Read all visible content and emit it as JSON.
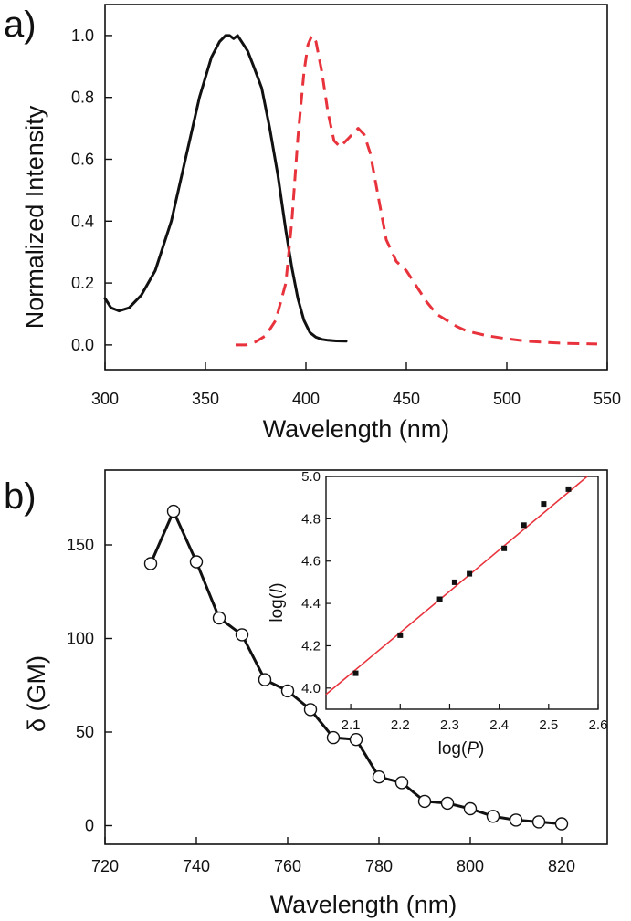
{
  "chart_data": [
    {
      "panel": "a)",
      "type": "line",
      "xlabel": "Wavelength (nm)",
      "ylabel": "Normalized Intensity",
      "xlim": [
        300,
        550
      ],
      "ylim": [
        -0.08,
        1.1
      ],
      "xticks": [
        "300",
        "350",
        "400",
        "450",
        "500",
        "550"
      ],
      "yticks": [
        "0.0",
        "0.2",
        "0.4",
        "0.6",
        "0.8",
        "1.0"
      ],
      "series": [
        {
          "style": "solid",
          "color": "#111111",
          "x": [
            300,
            303,
            307,
            312,
            318,
            325,
            333,
            340,
            347,
            353,
            357,
            360,
            362,
            364,
            366,
            368,
            371,
            374,
            378,
            382,
            386,
            390,
            393,
            396,
            399,
            402,
            405,
            408,
            411,
            415,
            420
          ],
          "y": [
            0.15,
            0.12,
            0.11,
            0.12,
            0.16,
            0.24,
            0.4,
            0.6,
            0.8,
            0.93,
            0.98,
            1.0,
            1.0,
            0.99,
            1.0,
            0.98,
            0.95,
            0.9,
            0.83,
            0.7,
            0.55,
            0.37,
            0.25,
            0.15,
            0.08,
            0.04,
            0.025,
            0.018,
            0.015,
            0.013,
            0.012
          ]
        },
        {
          "style": "dashed",
          "color": "#e8333c",
          "x": [
            365,
            370,
            375,
            380,
            385,
            390,
            393,
            396,
            399,
            401,
            403,
            405,
            408,
            411,
            414,
            417,
            420,
            423,
            426,
            429,
            432,
            436,
            440,
            445,
            450,
            455,
            460,
            465,
            470,
            475,
            480,
            490,
            500,
            510,
            520,
            530,
            545
          ],
          "y": [
            0.0,
            0.0,
            0.01,
            0.03,
            0.08,
            0.2,
            0.4,
            0.67,
            0.88,
            0.97,
            1.0,
            0.98,
            0.88,
            0.75,
            0.66,
            0.64,
            0.66,
            0.68,
            0.7,
            0.68,
            0.62,
            0.48,
            0.34,
            0.27,
            0.24,
            0.19,
            0.14,
            0.1,
            0.08,
            0.06,
            0.045,
            0.03,
            0.02,
            0.012,
            0.008,
            0.005,
            0.003
          ]
        }
      ]
    },
    {
      "panel": "b)",
      "type": "line",
      "xlabel": "Wavelength (nm)",
      "ylabel": "δ (GM)",
      "xlim": [
        720,
        830
      ],
      "ylim": [
        -10,
        190
      ],
      "xticks": [
        "720",
        "740",
        "760",
        "780",
        "800",
        "820"
      ],
      "yticks": [
        "0",
        "50",
        "100",
        "150"
      ],
      "series": [
        {
          "marker": "open-circle",
          "color": "#111111",
          "x": [
            730,
            735,
            740,
            745,
            750,
            755,
            760,
            765,
            770,
            775,
            780,
            785,
            790,
            795,
            800,
            805,
            810,
            815,
            820
          ],
          "y": [
            140,
            168,
            141,
            111,
            102,
            78,
            72,
            62,
            47,
            46,
            26,
            23,
            13,
            12,
            9,
            5,
            3,
            2,
            1
          ]
        }
      ]
    },
    {
      "panel": "inset",
      "type": "scatter",
      "xlabel_pre": "log(",
      "xlabel_var": "P",
      "xlabel_post": ")",
      "ylabel_pre": "log(",
      "ylabel_var": "I",
      "ylabel_post": ")",
      "xlim": [
        2.05,
        2.6
      ],
      "ylim": [
        3.9,
        5.0
      ],
      "xticks": [
        "2.1",
        "2.2",
        "2.3",
        "2.4",
        "2.5",
        "2.6"
      ],
      "yticks": [
        "4.0",
        "4.2",
        "4.4",
        "4.6",
        "4.8",
        "5.0"
      ],
      "points": {
        "marker": "filled-square",
        "color": "#111111",
        "x": [
          2.11,
          2.2,
          2.28,
          2.31,
          2.34,
          2.41,
          2.45,
          2.49,
          2.54
        ],
        "y": [
          4.07,
          4.25,
          4.42,
          4.5,
          4.54,
          4.66,
          4.77,
          4.87,
          4.94
        ]
      },
      "fit": {
        "color": "#e8333c",
        "x": [
          2.05,
          2.578
        ],
        "y": [
          3.97,
          5.0
        ]
      }
    }
  ]
}
